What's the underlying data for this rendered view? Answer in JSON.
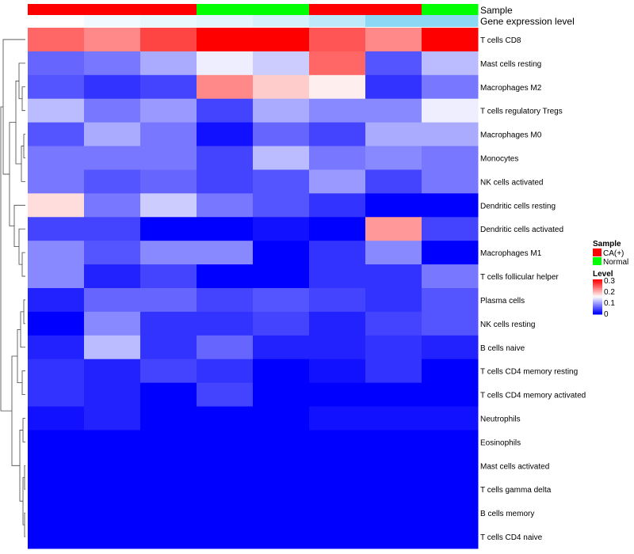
{
  "chart_data": {
    "type": "heatmap",
    "annotation_labels": [
      "Sample",
      "Gene expression level"
    ],
    "samples": [
      "CA(+)",
      "CA(+)",
      "CA(+)",
      "Normal",
      "Normal",
      "CA(+)",
      "CA(+)",
      "Normal"
    ],
    "gene_expression_level": [
      0.0,
      0.1,
      0.15,
      0.2,
      0.3,
      0.45,
      0.8,
      0.8
    ],
    "rows": [
      "T cells CD8",
      "Mast cells resting",
      "Macrophages M2",
      "T cells regulatory  Tregs",
      "Macrophages M0",
      "Monocytes",
      "NK cells activated",
      "Dendritic cells resting",
      "Dendritic cells activated",
      "Macrophages M1",
      "T cells follicular helper",
      "Plasma cells",
      "NK cells resting",
      "B cells naive",
      "T cells CD4 memory resting",
      "T cells CD4 memory activated",
      "Neutrophils",
      "Eosinophils",
      "Mast cells activated",
      "T cells gamma delta",
      "B cells memory",
      "T cells CD4 naive"
    ],
    "values": [
      [
        0.24,
        0.22,
        0.26,
        0.3,
        0.3,
        0.25,
        0.22,
        0.3
      ],
      [
        0.06,
        0.07,
        0.1,
        0.14,
        0.12,
        0.24,
        0.05,
        0.11
      ],
      [
        0.05,
        0.03,
        0.04,
        0.22,
        0.18,
        0.16,
        0.03,
        0.07
      ],
      [
        0.11,
        0.07,
        0.09,
        0.04,
        0.1,
        0.08,
        0.08,
        0.14
      ],
      [
        0.05,
        0.1,
        0.07,
        0.01,
        0.06,
        0.04,
        0.1,
        0.1
      ],
      [
        0.07,
        0.07,
        0.07,
        0.04,
        0.11,
        0.07,
        0.08,
        0.07
      ],
      [
        0.07,
        0.05,
        0.06,
        0.04,
        0.05,
        0.09,
        0.04,
        0.07
      ],
      [
        0.17,
        0.07,
        0.12,
        0.07,
        0.05,
        0.03,
        0.0,
        0.0
      ],
      [
        0.04,
        0.04,
        0.0,
        0.0,
        0.01,
        0.0,
        0.21,
        0.04
      ],
      [
        0.08,
        0.05,
        0.08,
        0.08,
        0.0,
        0.03,
        0.08,
        0.0
      ],
      [
        0.08,
        0.02,
        0.04,
        0.0,
        0.0,
        0.03,
        0.03,
        0.07
      ],
      [
        0.02,
        0.06,
        0.06,
        0.04,
        0.05,
        0.04,
        0.03,
        0.05
      ],
      [
        0.0,
        0.08,
        0.03,
        0.03,
        0.04,
        0.02,
        0.04,
        0.05
      ],
      [
        0.02,
        0.11,
        0.03,
        0.06,
        0.02,
        0.02,
        0.03,
        0.02
      ],
      [
        0.03,
        0.02,
        0.04,
        0.03,
        0.0,
        0.01,
        0.03,
        0.0
      ],
      [
        0.03,
        0.02,
        0.0,
        0.04,
        0.0,
        0.0,
        0.0,
        0.0
      ],
      [
        0.01,
        0.02,
        0.0,
        0.0,
        0.0,
        0.01,
        0.01,
        0.01
      ],
      [
        0.0,
        0.0,
        0.0,
        0.0,
        0.0,
        0.0,
        0.0,
        0.0
      ],
      [
        0.0,
        0.0,
        0.0,
        0.0,
        0.0,
        0.0,
        0.0,
        0.0
      ],
      [
        0.0,
        0.0,
        0.0,
        0.0,
        0.0,
        0.0,
        0.0,
        0.0
      ],
      [
        0.0,
        0.0,
        0.0,
        0.0,
        0.0,
        0.0,
        0.0,
        0.0
      ],
      [
        0.0,
        0.0,
        0.0,
        0.0,
        0.0,
        0.0,
        0.0,
        0.0
      ]
    ],
    "color_range": [
      0,
      0.3
    ],
    "colors": {
      "low": "#0000ff",
      "mid": "#ffffff",
      "high": "#ff0000",
      "ca_positive": "#ff0000",
      "normal": "#00ff00",
      "expression_low": "#ffffff",
      "expression_high": "#6fcdf0"
    },
    "row_dendrogram": true,
    "legend": {
      "sample_title": "Sample",
      "sample_entries": [
        "CA(+)",
        "Normal"
      ],
      "level_title": "Level",
      "level_ticks": [
        "0.3",
        "0.2",
        "0.1",
        "0"
      ],
      "position": "right"
    }
  }
}
